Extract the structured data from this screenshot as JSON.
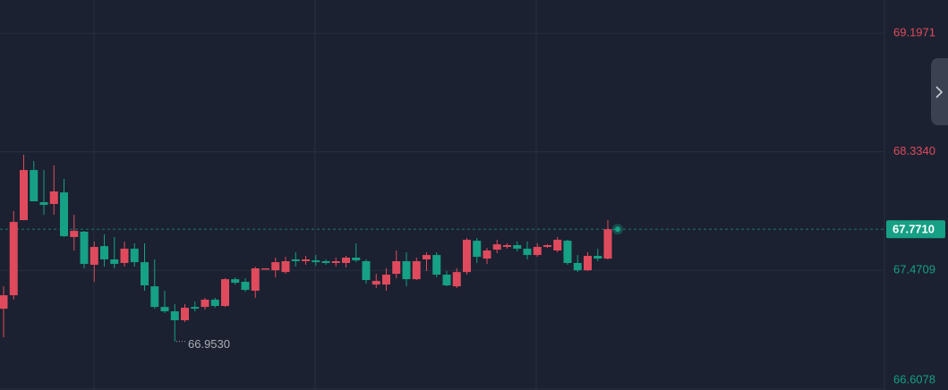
{
  "chart_data": {
    "type": "candlestick",
    "up_color": "#e04a5d",
    "down_color": "#16a085",
    "ylim": [
      66.6,
      69.44
    ],
    "yticks": [
      69.1971,
      {
        "value": 68.334,
        "label": "68.3340"
      },
      67.4709,
      66.6078
    ],
    "grid": true,
    "last_price": {
      "value": 67.771,
      "label": "67.7710"
    },
    "min_annotation": {
      "value": 66.953,
      "label": "66.9530"
    },
    "open": [
      67.192,
      67.29,
      67.837,
      68.202,
      67.968,
      67.955,
      68.039,
      67.714,
      67.753,
      67.512,
      67.648,
      67.551,
      67.525,
      67.629,
      67.531,
      67.355,
      67.205,
      67.173,
      67.108,
      67.205,
      67.205,
      67.258,
      67.212,
      67.407,
      67.388,
      67.323,
      67.479,
      67.472,
      67.459,
      67.551,
      67.538,
      67.544,
      67.538,
      67.525,
      67.525,
      67.564,
      67.538,
      67.368,
      67.368,
      67.446,
      67.538,
      67.407,
      67.551,
      67.583,
      67.44,
      67.355,
      67.459,
      67.687,
      67.557,
      67.622,
      67.642,
      67.655,
      67.629,
      67.583,
      67.642,
      67.616,
      67.687,
      67.525,
      67.472,
      67.577,
      67.557
    ],
    "high": [
      67.355,
      67.903,
      68.313,
      68.267,
      68.202,
      68.235,
      68.137,
      67.876,
      67.759,
      67.681,
      67.733,
      67.714,
      67.681,
      67.668,
      67.668,
      67.551,
      67.323,
      67.225,
      67.225,
      67.244,
      67.271,
      67.271,
      67.414,
      67.42,
      67.414,
      67.499,
      67.486,
      67.564,
      67.57,
      67.603,
      67.577,
      67.583,
      67.551,
      67.564,
      67.577,
      67.668,
      67.551,
      67.446,
      67.486,
      67.616,
      67.603,
      67.564,
      67.603,
      67.603,
      67.466,
      67.486,
      67.707,
      67.707,
      67.635,
      67.694,
      67.668,
      67.681,
      67.681,
      67.668,
      67.661,
      67.714,
      67.694,
      67.583,
      67.603,
      67.629,
      67.837
    ],
    "low": [
      66.984,
      67.258,
      67.837,
      67.974,
      67.876,
      67.876,
      67.714,
      67.616,
      67.486,
      67.388,
      67.499,
      67.486,
      67.499,
      67.499,
      67.323,
      67.192,
      67.16,
      66.953,
      67.095,
      67.173,
      67.186,
      67.199,
      67.205,
      67.368,
      67.316,
      67.271,
      67.479,
      67.42,
      67.446,
      67.499,
      67.512,
      67.505,
      67.512,
      67.499,
      67.492,
      67.531,
      67.375,
      67.342,
      67.323,
      67.414,
      67.355,
      67.401,
      67.466,
      67.42,
      67.355,
      67.342,
      67.44,
      67.525,
      67.518,
      67.596,
      67.629,
      67.609,
      67.551,
      67.57,
      67.635,
      67.603,
      67.512,
      67.459,
      67.466,
      67.538,
      67.551
    ],
    "close": [
      67.29,
      67.824,
      68.202,
      67.974,
      67.948,
      68.046,
      67.72,
      67.759,
      67.518,
      67.642,
      67.551,
      67.518,
      67.629,
      67.531,
      67.362,
      67.205,
      67.173,
      67.108,
      67.199,
      67.192,
      67.258,
      67.212,
      67.407,
      67.381,
      67.329,
      67.486,
      67.486,
      67.531,
      67.538,
      67.538,
      67.551,
      67.531,
      67.525,
      67.538,
      67.564,
      67.544,
      67.401,
      67.394,
      67.44,
      67.538,
      67.407,
      67.538,
      67.583,
      67.44,
      67.362,
      67.459,
      67.694,
      67.57,
      67.616,
      67.661,
      67.655,
      67.629,
      67.583,
      67.642,
      67.655,
      67.694,
      67.525,
      67.472,
      67.577,
      67.557,
      67.771
    ]
  }
}
